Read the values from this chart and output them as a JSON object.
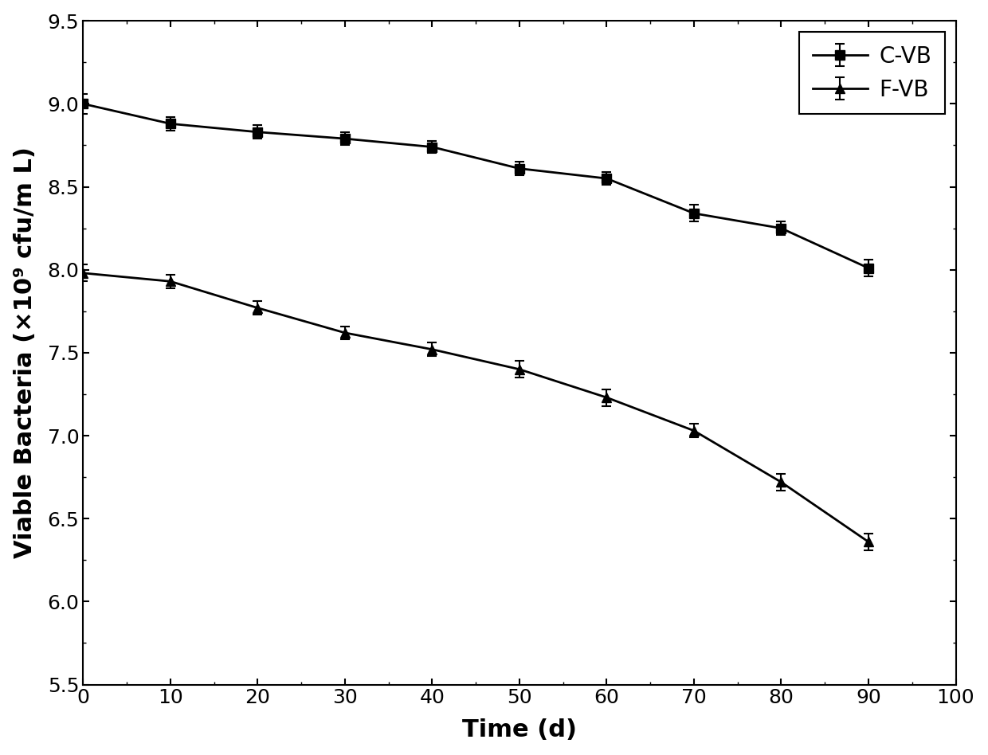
{
  "x": [
    0,
    10,
    20,
    30,
    40,
    50,
    60,
    70,
    80,
    90
  ],
  "cvb_y": [
    9.0,
    8.88,
    8.83,
    8.79,
    8.74,
    8.61,
    8.55,
    8.34,
    8.25,
    8.01
  ],
  "cvb_err": [
    0.06,
    0.04,
    0.04,
    0.04,
    0.035,
    0.04,
    0.04,
    0.05,
    0.04,
    0.05
  ],
  "fvb_y": [
    7.98,
    7.93,
    7.77,
    7.62,
    7.52,
    7.4,
    7.23,
    7.03,
    6.72,
    6.36
  ],
  "fvb_err": [
    0.05,
    0.04,
    0.04,
    0.04,
    0.04,
    0.05,
    0.05,
    0.04,
    0.05,
    0.05
  ],
  "xlim": [
    0,
    100
  ],
  "ylim": [
    5.5,
    9.5
  ],
  "xticks": [
    0,
    10,
    20,
    30,
    40,
    50,
    60,
    70,
    80,
    90,
    100
  ],
  "yticks": [
    5.5,
    6.0,
    6.5,
    7.0,
    7.5,
    8.0,
    8.5,
    9.0,
    9.5
  ],
  "xlabel": "Time (d)",
  "ylabel": "Viable Bacteria (×10⁹ cfu/m L)",
  "legend_labels": [
    "C-VB",
    "F-VB"
  ],
  "line_color": "#000000",
  "background_color": "#ffffff",
  "tick_fontsize": 18,
  "label_fontsize": 22,
  "legend_fontsize": 20
}
